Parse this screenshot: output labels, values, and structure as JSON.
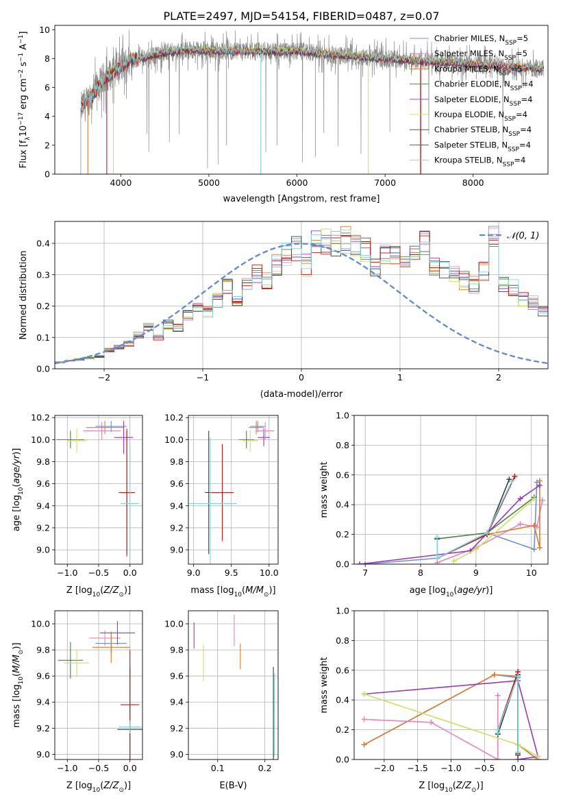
{
  "figure": {
    "title": "PLATE=2497, MJD=54154, FIBERID=0487, z=0.07"
  },
  "colors": {
    "Chabrier MILES": "#6b8fd6",
    "Salpeter MILES": "#e883bf",
    "Kroupa MILES": "#e07b28",
    "Chabrier ELODIE": "#4f7f3f",
    "Salpeter ELODIE": "#9b35b8",
    "Kroupa ELODIE": "#c7e35a",
    "Chabrier STELIB": "#3a3a3a",
    "Salpeter STELIB": "#c41b1b",
    "Kroupa STELIB": "#7fd6e0",
    "data_gray": "#8a8a8a",
    "normal_curve": "#5b8ad6",
    "grid": "#b0b0b0"
  },
  "chart_data": [
    {
      "id": "spectrum",
      "type": "line",
      "xlabel": "wavelength [Angstrom, rest frame]",
      "ylabel": "Flux [f_λ 10^-17 erg cm^-2 s^-1 A^-1]",
      "xlim": [
        3250,
        8850
      ],
      "ylim": [
        0,
        10.3
      ],
      "xticks": [
        4000,
        5000,
        6000,
        7000,
        8000
      ],
      "yticks": [
        0,
        2,
        4,
        6,
        8,
        10
      ],
      "grid": false,
      "legend_position": "right",
      "legend": [
        "Chabrier MILES, N_SSP=5",
        "Salpeter MILES, N_SSP=5",
        "Kroupa MILES, N_SSP=5",
        "Chabrier ELODIE, N_SSP=4",
        "Salpeter ELODIE, N_SSP=4",
        "Kroupa ELODIE, N_SSP=4",
        "Chabrier STELIB, N_SSP=4",
        "Salpeter STELIB, N_SSP=4",
        "Kroupa STELIB, N_SSP=4"
      ],
      "continuum_shape": {
        "x": [
          3550,
          3700,
          3800,
          3900,
          4000,
          4100,
          4300,
          4500,
          4800,
          5200,
          5600,
          6000,
          6500,
          7000,
          7500,
          8000,
          8500,
          8800
        ],
        "y": [
          4.6,
          5.6,
          6.6,
          7.0,
          7.4,
          7.9,
          8.1,
          8.4,
          8.6,
          8.5,
          8.5,
          8.5,
          8.2,
          8.0,
          7.8,
          7.6,
          7.4,
          7.3
        ]
      }
    },
    {
      "id": "residuals",
      "type": "histogram",
      "xlabel": "(data-model)/error",
      "ylabel": "Normed distribution",
      "xlim": [
        -2.5,
        2.5
      ],
      "ylim": [
        0,
        0.47
      ],
      "xticks": [
        -2,
        -1,
        0,
        1,
        2
      ],
      "xtick_labels": [
        "−2",
        "−1",
        "0",
        "1",
        "2"
      ],
      "yticks": [
        0.0,
        0.1,
        0.2,
        0.3,
        0.4
      ],
      "grid": true,
      "legend_position": "top-right",
      "normal_label": "𝒩(0, 1)",
      "bin_edges_start": -2.5,
      "bin_width": 0.1,
      "base_hist": [
        0.02,
        0.025,
        0.03,
        0.035,
        0.04,
        0.06,
        0.07,
        0.08,
        0.11,
        0.13,
        0.1,
        0.14,
        0.13,
        0.17,
        0.2,
        0.18,
        0.22,
        0.26,
        0.22,
        0.27,
        0.3,
        0.28,
        0.33,
        0.37,
        0.38,
        0.33,
        0.4,
        0.41,
        0.4,
        0.41,
        0.4,
        0.38,
        0.33,
        0.36,
        0.36,
        0.33,
        0.38,
        0.4,
        0.33,
        0.31,
        0.3,
        0.28,
        0.27,
        0.31,
        0.42,
        0.27,
        0.26,
        0.22,
        0.21,
        0.18,
        0.17,
        0.13,
        0.12,
        0.1,
        0.08,
        0.08,
        0.08,
        0.09,
        0.07,
        0.05,
        0.06,
        0.05,
        0.04,
        0.04,
        0.05,
        0.05,
        0.04,
        0.04,
        0.03,
        0.03
      ],
      "normal_pdf": {
        "mean": 0,
        "sigma": 1
      }
    },
    {
      "id": "age_vs_Z",
      "type": "scatter",
      "xlabel": "Z [log10(Z/Z_⊙)]",
      "ylabel": "age [log10(age/yr)]",
      "xlim": [
        -1.2,
        0.2
      ],
      "ylim": [
        8.87,
        10.22
      ],
      "xticks": [
        -1.0,
        -0.5,
        0.0
      ],
      "xtick_labels": [
        "−1.0",
        "−0.5",
        "0.0"
      ],
      "yticks": [
        9.0,
        9.2,
        9.4,
        9.6,
        9.8,
        10.0,
        10.2
      ],
      "grid": true,
      "points": [
        {
          "model": "Chabrier ELODIE",
          "x": -0.95,
          "y": 10.0,
          "xe": 0.22,
          "ye": 0.08
        },
        {
          "model": "Kroupa ELODIE",
          "x": -0.85,
          "y": 9.99,
          "xe": 0.15,
          "ye": 0.11
        },
        {
          "model": "Salpeter MILES",
          "x": -0.45,
          "y": 10.08,
          "xe": 0.3,
          "ye": 0.08
        },
        {
          "model": "Chabrier MILES",
          "x": -0.3,
          "y": 10.12,
          "xe": 0.25,
          "ye": 0.05
        },
        {
          "model": "Kroupa MILES",
          "x": -0.4,
          "y": 10.11,
          "xe": 0.3,
          "ye": 0.06
        },
        {
          "model": "Salpeter ELODIE",
          "x": -0.1,
          "y": 10.02,
          "xe": 0.15,
          "ye": 0.15
        },
        {
          "model": "Chabrier STELIB",
          "x": -0.05,
          "y": 9.52,
          "xe": 0.1,
          "ye": 0.56
        },
        {
          "model": "Salpeter STELIB",
          "x": -0.05,
          "y": 9.52,
          "xe": 0.13,
          "ye": 0.58
        },
        {
          "model": "Kroupa STELIB",
          "x": 0.0,
          "y": 9.42,
          "xe": 0.15,
          "ye": 0.55
        }
      ]
    },
    {
      "id": "age_vs_mass",
      "type": "scatter",
      "xlabel": "mass [log10(M/M_⊙)]",
      "ylabel": "",
      "xlim": [
        8.93,
        10.12
      ],
      "ylim": [
        8.87,
        10.22
      ],
      "xticks": [
        9.0,
        9.5,
        10.0
      ],
      "xtick_labels": [
        "9.0",
        "9.5",
        "10.0"
      ],
      "yticks": [
        9.0,
        9.2,
        9.4,
        9.6,
        9.8,
        10.0,
        10.2
      ],
      "grid": true,
      "points": [
        {
          "model": "Chabrier STELIB",
          "x": 9.2,
          "y": 9.52,
          "xe": 0.05,
          "ye": 0.56
        },
        {
          "model": "Salpeter STELIB",
          "x": 9.38,
          "y": 9.52,
          "xe": 0.15,
          "ye": 0.44
        },
        {
          "model": "Kroupa STELIB",
          "x": 9.22,
          "y": 9.42,
          "xe": 0.35,
          "ye": 0.6
        },
        {
          "model": "Chabrier ELODIE",
          "x": 9.7,
          "y": 10.0,
          "xe": 0.1,
          "ye": 0.08
        },
        {
          "model": "Kroupa ELODIE",
          "x": 9.75,
          "y": 9.99,
          "xe": 0.1,
          "ye": 0.1
        },
        {
          "model": "Salpeter ELODIE",
          "x": 9.93,
          "y": 10.02,
          "xe": 0.08,
          "ye": 0.08
        },
        {
          "model": "Chabrier MILES",
          "x": 9.85,
          "y": 10.12,
          "xe": 0.1,
          "ye": 0.05
        },
        {
          "model": "Kroupa MILES",
          "x": 9.83,
          "y": 10.11,
          "xe": 0.1,
          "ye": 0.06
        },
        {
          "model": "Salpeter MILES",
          "x": 9.95,
          "y": 10.08,
          "xe": 0.12,
          "ye": 0.08
        }
      ]
    },
    {
      "id": "mass_weight_vs_age",
      "type": "line",
      "xlabel": "age [log10(age/yr)]",
      "ylabel": "mass weight",
      "xlim": [
        6.8,
        10.3
      ],
      "ylim": [
        0,
        1.0
      ],
      "xticks": [
        7,
        8,
        9,
        10
      ],
      "yticks": [
        0.0,
        0.2,
        0.4,
        0.6,
        0.8,
        1.0
      ],
      "grid": true,
      "series": [
        {
          "model": "Chabrier MILES",
          "x": [
            7.0,
            8.3,
            9.2,
            10.05,
            10.1
          ],
          "y": [
            0.0,
            0.04,
            0.21,
            0.1,
            0.55
          ]
        },
        {
          "model": "Salpeter MILES",
          "x": [
            8.3,
            9.0,
            9.8,
            10.1,
            10.2
          ],
          "y": [
            0.01,
            0.11,
            0.27,
            0.25,
            0.43
          ]
        },
        {
          "model": "Kroupa MILES",
          "x": [
            8.3,
            9.2,
            10.05,
            10.15,
            10.15
          ],
          "y": [
            0.04,
            0.2,
            0.26,
            0.11,
            0.56
          ]
        },
        {
          "model": "Chabrier ELODIE",
          "x": [
            8.3,
            9.2,
            10.05
          ],
          "y": [
            0.17,
            0.21,
            0.45
          ]
        },
        {
          "model": "Salpeter ELODIE",
          "x": [
            6.9,
            8.9,
            9.8,
            10.15
          ],
          "y": [
            0.0,
            0.09,
            0.44,
            0.53
          ]
        },
        {
          "model": "Kroupa ELODIE",
          "x": [
            8.6,
            9.0,
            10.05
          ],
          "y": [
            0.02,
            0.1,
            0.44
          ]
        },
        {
          "model": "Chabrier STELIB",
          "x": [
            8.3,
            8.3,
            9.2,
            9.6
          ],
          "y": [
            0.17,
            0.04,
            0.2,
            0.57
          ]
        },
        {
          "model": "Salpeter STELIB",
          "x": [
            8.3,
            9.2,
            9.7
          ],
          "y": [
            0.04,
            0.2,
            0.59
          ]
        },
        {
          "model": "Kroupa STELIB",
          "x": [
            8.3,
            8.3,
            9.2,
            9.65
          ],
          "y": [
            0.18,
            0.04,
            0.21,
            0.56
          ]
        }
      ]
    },
    {
      "id": "mass_vs_Z",
      "type": "scatter",
      "xlabel": "Z [log10(Z/Z_⊙)]",
      "ylabel": "mass [log10(M/M_⊙)]",
      "xlim": [
        -1.2,
        0.2
      ],
      "ylim": [
        8.96,
        10.1
      ],
      "xticks": [
        -1.0,
        -0.5,
        0.0
      ],
      "xtick_labels": [
        "−1.0",
        "−0.5",
        "0.0"
      ],
      "yticks": [
        9.0,
        9.2,
        9.4,
        9.6,
        9.8,
        10.0
      ],
      "grid": true,
      "points": [
        {
          "model": "Chabrier ELODIE",
          "x": -0.95,
          "y": 9.72,
          "xe": 0.2,
          "ye": 0.14
        },
        {
          "model": "Kroupa ELODIE",
          "x": -0.85,
          "y": 9.7,
          "xe": 0.2,
          "ye": 0.1
        },
        {
          "model": "Salpeter MILES",
          "x": -0.4,
          "y": 9.89,
          "xe": 0.25,
          "ye": 0.06
        },
        {
          "model": "Chabrier MILES",
          "x": -0.3,
          "y": 9.85,
          "xe": 0.25,
          "ye": 0.08
        },
        {
          "model": "Kroupa MILES",
          "x": -0.3,
          "y": 9.82,
          "xe": 0.3,
          "ye": 0.12
        },
        {
          "model": "Salpeter ELODIE",
          "x": -0.2,
          "y": 9.93,
          "xe": 0.28,
          "ye": 0.09
        },
        {
          "model": "Chabrier STELIB",
          "x": 0.0,
          "y": 9.19,
          "xe": 0.2,
          "ye": 0.48
        },
        {
          "model": "Salpeter STELIB",
          "x": 0.0,
          "y": 9.38,
          "xe": 0.15,
          "ye": 0.42
        },
        {
          "model": "Kroupa STELIB",
          "x": 0.0,
          "y": 9.21,
          "xe": 0.18,
          "ye": 0.05
        }
      ]
    },
    {
      "id": "mass_vs_ebv",
      "type": "scatter",
      "xlabel": "E(B-V)",
      "ylabel": "",
      "xlim": [
        0.038,
        0.228
      ],
      "ylim": [
        8.96,
        10.1
      ],
      "xticks": [
        0.1,
        0.2
      ],
      "xtick_labels": [
        "0.1",
        "0.2"
      ],
      "yticks": [
        9.0,
        9.2,
        9.4,
        9.6,
        9.8,
        10.0
      ],
      "grid": true,
      "points": [
        {
          "model": "Salpeter ELODIE",
          "x": 0.05,
          "y": 9.91,
          "ye": 0.1
        },
        {
          "model": "Kroupa ELODIE",
          "x": 0.07,
          "y": 9.7,
          "ye": 0.14
        },
        {
          "model": "Salpeter MILES",
          "x": 0.135,
          "y": 9.95,
          "ye": 0.12
        },
        {
          "model": "Kroupa MILES",
          "x": 0.148,
          "y": 9.75,
          "ye": 0.1
        },
        {
          "model": "Chabrier STELIB",
          "x": 0.218,
          "y": 9.3,
          "ye": 0.37
        },
        {
          "model": "Kroupa STELIB",
          "x": 0.22,
          "y": 9.3,
          "ye": 0.32
        }
      ]
    },
    {
      "id": "mass_weight_vs_Z",
      "type": "line",
      "xlabel": "Z [log10(Z/Z_⊙)]",
      "ylabel": "mass weight",
      "xlim": [
        -2.45,
        0.45
      ],
      "ylim": [
        0,
        1.0
      ],
      "xticks": [
        -2.0,
        -1.5,
        -1.0,
        -0.5,
        0.0
      ],
      "xtick_labels": [
        "−2.0",
        "−1.5",
        "−1.0",
        "−0.5",
        "0.0"
      ],
      "yticks": [
        0.0,
        0.2,
        0.4,
        0.6,
        0.8,
        1.0
      ],
      "grid": true,
      "series": [
        {
          "model": "Chabrier MILES",
          "x": [
            -2.3,
            -0.35,
            0.0,
            0.0,
            0.3
          ],
          "y": [
            0.1,
            0.57,
            0.55,
            0.1,
            0.0
          ]
        },
        {
          "model": "Kroupa MILES",
          "x": [
            -2.3,
            -0.35,
            0.0,
            0.0,
            0.3
          ],
          "y": [
            0.1,
            0.57,
            0.56,
            0.1,
            0.0
          ]
        },
        {
          "model": "Salpeter MILES",
          "x": [
            -2.3,
            -1.3,
            -0.3,
            -0.3
          ],
          "y": [
            0.27,
            0.25,
            0.0,
            0.43
          ]
        },
        {
          "model": "Salpeter ELODIE",
          "x": [
            -2.3,
            0.0,
            0.3,
            0.0
          ],
          "y": [
            0.44,
            0.53,
            0.02,
            0.0
          ]
        },
        {
          "model": "Kroupa ELODIE",
          "x": [
            -2.3,
            0.0,
            0.3
          ],
          "y": [
            0.44,
            0.1,
            0.02
          ]
        },
        {
          "model": "Chabrier STELIB",
          "x": [
            -0.3,
            0.0,
            0.0
          ],
          "y": [
            0.17,
            0.57,
            0.03
          ]
        },
        {
          "model": "Salpeter STELIB",
          "x": [
            -0.3,
            0.0,
            0.0
          ],
          "y": [
            0.2,
            0.59,
            0.04
          ]
        },
        {
          "model": "Kroupa STELIB",
          "x": [
            -0.3,
            -0.3,
            0.0,
            0.0
          ],
          "y": [
            0.18,
            0.2,
            0.56,
            0.05
          ]
        }
      ]
    }
  ]
}
